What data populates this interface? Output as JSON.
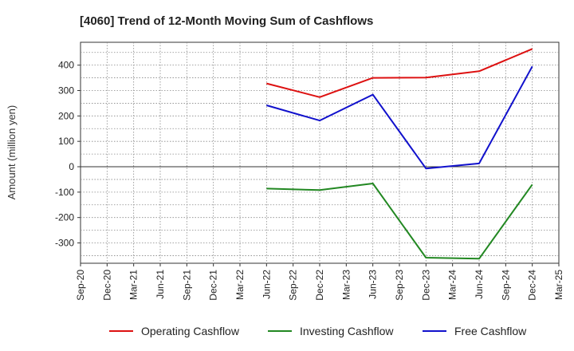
{
  "chart_data": {
    "type": "line",
    "title": "[4060]  Trend of 12-Month Moving Sum of Cashflows",
    "ylabel": "Amount (million yen)",
    "xlabel": "",
    "ylim": [
      -380,
      490
    ],
    "y_ticks": [
      -300,
      -200,
      -100,
      0,
      100,
      200,
      300,
      400
    ],
    "y_tick_labels": [
      "-300",
      "-200",
      "-100",
      "0",
      "100",
      "200",
      "300",
      "400"
    ],
    "x_tick_labels": [
      "Sep-20",
      "Dec-20",
      "Mar-21",
      "Jun-21",
      "Sep-21",
      "Dec-21",
      "Mar-22",
      "Jun-22",
      "Sep-22",
      "Dec-22",
      "Mar-23",
      "Jun-23",
      "Sep-23",
      "Dec-23",
      "Mar-24",
      "Jun-24",
      "Sep-24",
      "Dec-24",
      "Mar-25"
    ],
    "grid": true,
    "legend_position": "bottom",
    "series": [
      {
        "name": "Operating Cashflow",
        "color": "#dd1111",
        "points": [
          {
            "x": "Jun-22",
            "y": 328
          },
          {
            "x": "Dec-22",
            "y": 274
          },
          {
            "x": "Jun-23",
            "y": 350
          },
          {
            "x": "Dec-23",
            "y": 351
          },
          {
            "x": "Jun-24",
            "y": 376
          },
          {
            "x": "Dec-24",
            "y": 464
          }
        ]
      },
      {
        "name": "Investing Cashflow",
        "color": "#228822",
        "points": [
          {
            "x": "Jun-22",
            "y": -86
          },
          {
            "x": "Dec-22",
            "y": -92
          },
          {
            "x": "Jun-23",
            "y": -66
          },
          {
            "x": "Dec-23",
            "y": -358
          },
          {
            "x": "Jun-24",
            "y": -362
          },
          {
            "x": "Dec-24",
            "y": -70
          }
        ]
      },
      {
        "name": "Free Cashflow",
        "color": "#1111cc",
        "points": [
          {
            "x": "Jun-22",
            "y": 242
          },
          {
            "x": "Dec-22",
            "y": 182
          },
          {
            "x": "Jun-23",
            "y": 284
          },
          {
            "x": "Dec-23",
            "y": -7
          },
          {
            "x": "Jun-24",
            "y": 13
          },
          {
            "x": "Dec-24",
            "y": 395
          }
        ]
      }
    ]
  }
}
